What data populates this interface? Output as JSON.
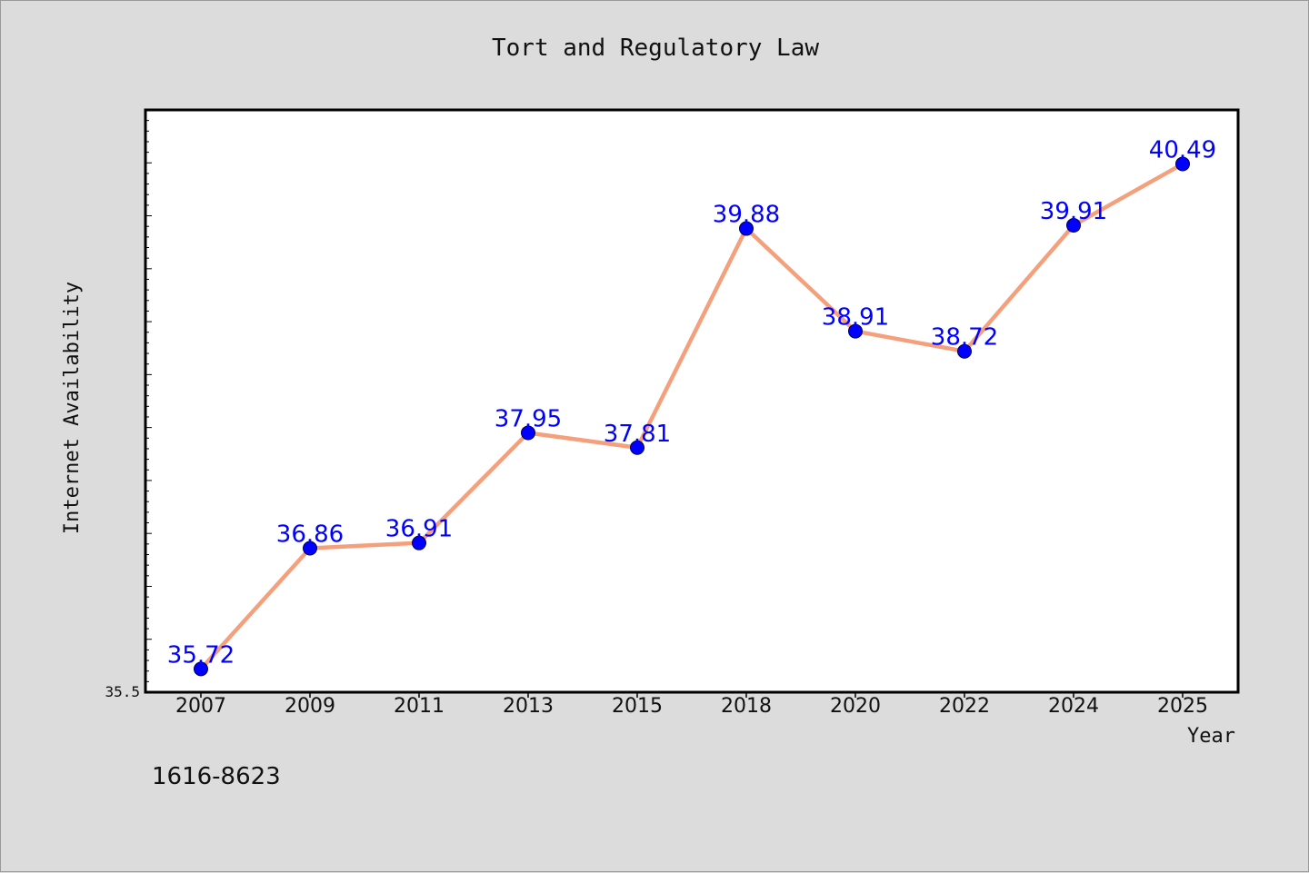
{
  "chart_data": {
    "type": "line",
    "title": "Tort and Regulatory Law",
    "xlabel": "Year",
    "ylabel": "Internet Availability",
    "categories": [
      "2007",
      "2009",
      "2011",
      "2013",
      "2015",
      "2018",
      "2020",
      "2022",
      "2024",
      "2025"
    ],
    "series": [
      {
        "values": [
          35.72,
          36.86,
          36.91,
          37.95,
          37.81,
          39.88,
          38.91,
          38.72,
          39.91,
          40.49
        ]
      }
    ],
    "ylim": [
      35.5,
      41.0
    ],
    "y_tick_labels": [
      "35.5"
    ],
    "grid": false,
    "line_color": "#f4a07c",
    "marker_color": "#0000ff",
    "label_color": "#0000ff"
  },
  "footer_text": "1616-8623"
}
